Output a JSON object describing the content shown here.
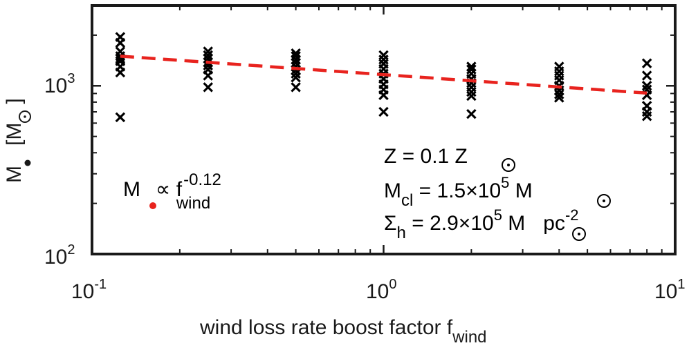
{
  "chart_data": {
    "type": "scatter",
    "xscale": "log",
    "yscale": "log",
    "xlim": [
      0.1,
      10
    ],
    "ylim": [
      100,
      3000
    ],
    "grid": false,
    "xlabel": {
      "main": "wind loss rate boost factor f",
      "sub": "wind"
    },
    "ylabel": {
      "m": "M",
      "bracket_open": "[M",
      "bracket_close": "]"
    },
    "x_ticks": [
      {
        "value": 0.1,
        "base": "10",
        "exp": "-1"
      },
      {
        "value": 1,
        "base": "10",
        "exp": "0"
      },
      {
        "value": 10,
        "base": "10",
        "exp": "1"
      }
    ],
    "y_ticks": [
      {
        "value": 100,
        "base": "10",
        "exp": "2"
      },
      {
        "value": 1000,
        "base": "10",
        "exp": "3"
      }
    ],
    "series": [
      {
        "marker": "x",
        "color": "#000000",
        "points": [
          {
            "x": 0.125,
            "y": 1950
          },
          {
            "x": 0.125,
            "y": 1800
          },
          {
            "x": 0.125,
            "y": 1600
          },
          {
            "x": 0.125,
            "y": 1500
          },
          {
            "x": 0.125,
            "y": 1450
          },
          {
            "x": 0.125,
            "y": 1400
          },
          {
            "x": 0.125,
            "y": 1300
          },
          {
            "x": 0.125,
            "y": 1200
          },
          {
            "x": 0.125,
            "y": 650
          },
          {
            "x": 0.25,
            "y": 1600
          },
          {
            "x": 0.25,
            "y": 1520
          },
          {
            "x": 0.25,
            "y": 1450
          },
          {
            "x": 0.25,
            "y": 1380
          },
          {
            "x": 0.25,
            "y": 1320
          },
          {
            "x": 0.25,
            "y": 1250
          },
          {
            "x": 0.25,
            "y": 1150
          },
          {
            "x": 0.25,
            "y": 980
          },
          {
            "x": 0.5,
            "y": 1560
          },
          {
            "x": 0.5,
            "y": 1500
          },
          {
            "x": 0.5,
            "y": 1430
          },
          {
            "x": 0.5,
            "y": 1370
          },
          {
            "x": 0.5,
            "y": 1300
          },
          {
            "x": 0.5,
            "y": 1240
          },
          {
            "x": 0.5,
            "y": 1180
          },
          {
            "x": 0.5,
            "y": 1120
          },
          {
            "x": 0.5,
            "y": 980
          },
          {
            "x": 1,
            "y": 1520
          },
          {
            "x": 1,
            "y": 1430
          },
          {
            "x": 1,
            "y": 1350
          },
          {
            "x": 1,
            "y": 1260
          },
          {
            "x": 1,
            "y": 1180
          },
          {
            "x": 1,
            "y": 1100
          },
          {
            "x": 1,
            "y": 1020
          },
          {
            "x": 1,
            "y": 950
          },
          {
            "x": 1,
            "y": 880
          },
          {
            "x": 1,
            "y": 700
          },
          {
            "x": 2,
            "y": 1300
          },
          {
            "x": 2,
            "y": 1250
          },
          {
            "x": 2,
            "y": 1180
          },
          {
            "x": 2,
            "y": 1100
          },
          {
            "x": 2,
            "y": 1040
          },
          {
            "x": 2,
            "y": 980
          },
          {
            "x": 2,
            "y": 920
          },
          {
            "x": 2,
            "y": 870
          },
          {
            "x": 2,
            "y": 680
          },
          {
            "x": 4,
            "y": 1300
          },
          {
            "x": 4,
            "y": 1220
          },
          {
            "x": 4,
            "y": 1150
          },
          {
            "x": 4,
            "y": 1080
          },
          {
            "x": 4,
            "y": 1000
          },
          {
            "x": 4,
            "y": 940
          },
          {
            "x": 4,
            "y": 890
          },
          {
            "x": 4,
            "y": 850
          },
          {
            "x": 8,
            "y": 1360
          },
          {
            "x": 8,
            "y": 1150
          },
          {
            "x": 8,
            "y": 1000
          },
          {
            "x": 8,
            "y": 950
          },
          {
            "x": 8,
            "y": 880
          },
          {
            "x": 8,
            "y": 760
          },
          {
            "x": 8,
            "y": 700
          },
          {
            "x": 8,
            "y": 660
          }
        ]
      }
    ],
    "fit": {
      "color": "#e8231e",
      "style": "dashed",
      "x": [
        0.125,
        8
      ],
      "y": [
        1500,
        905
      ]
    },
    "annotations": {
      "powerlaw": {
        "m": "M",
        "prop": "∝ f",
        "exp": "-0.12",
        "sub": "wind",
        "color": "#e8231e"
      },
      "params": {
        "line1": {
          "lhs": "Z = 0.1 Z"
        },
        "line2": {
          "m": "M",
          "sub": "cl",
          "mid": " = 1.5×10",
          "exp": "5",
          "tail": " M"
        },
        "line3": {
          "sigma": "Σ",
          "sub": "h",
          "mid": " = 2.9×10",
          "exp": "5",
          "tail": " M",
          "pc": "pc",
          "pc_exp": "-2"
        }
      }
    }
  }
}
